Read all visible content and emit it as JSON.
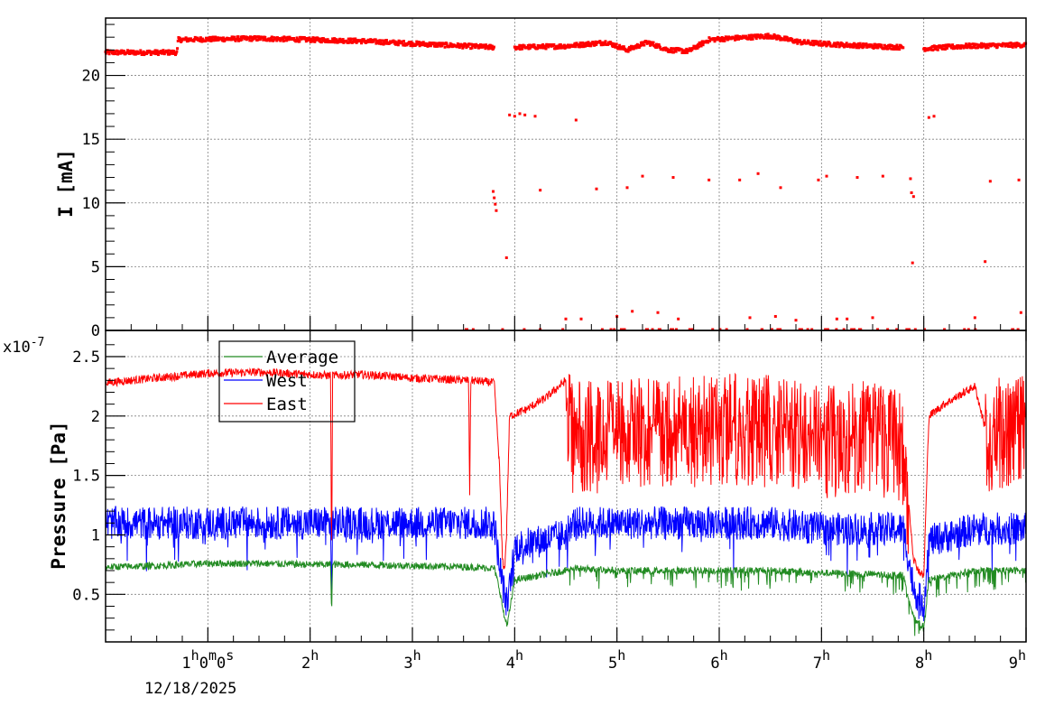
{
  "colors": {
    "east": "#ff0000",
    "west": "#0000ff",
    "average": "#228b22",
    "grid": "#808080",
    "frame": "#000000"
  },
  "chart_data": [
    {
      "type": "scatter",
      "ylabel": "I [mA]",
      "ylim": [
        0,
        24.5
      ],
      "y_ticks": [
        "0",
        "5",
        "10",
        "15",
        "20"
      ],
      "y_tick_values": [
        0,
        5,
        10,
        15,
        20
      ],
      "x_range_hours": [
        0,
        9
      ],
      "grid": true,
      "series": [
        {
          "color": "#ff0000",
          "main_trace": {
            "x": [
              0,
              0.7,
              0.71,
              1.5,
              2.5,
              3.0,
              3.8
            ],
            "y": [
              21.8,
              21.8,
              22.8,
              22.9,
              22.7,
              22.5,
              22.2
            ]
          },
          "main_trace_2": {
            "x": [
              4.0,
              4.5,
              4.9,
              5.1,
              5.3,
              5.5,
              5.7,
              5.9,
              6.1,
              6.5,
              6.8,
              7.2,
              7.8
            ],
            "y": [
              22.2,
              22.3,
              22.6,
              22.0,
              22.6,
              22.0,
              21.9,
              22.8,
              22.9,
              23.1,
              22.6,
              22.4,
              22.2
            ]
          },
          "main_trace_3": {
            "x": [
              8.0,
              8.4,
              9.0
            ],
            "y": [
              22.1,
              22.3,
              22.4
            ]
          },
          "scatter_points": {
            "x": [
              3.79,
              3.8,
              3.81,
              3.82,
              3.92,
              3.95,
              4.0,
              4.05,
              4.1,
              4.2,
              4.25,
              4.6,
              4.8,
              5.1,
              5.25,
              5.55,
              5.9,
              6.2,
              6.38,
              6.6,
              6.97,
              7.05,
              7.35,
              7.6,
              7.87,
              7.88,
              7.9,
              7.89,
              8.05,
              8.1,
              8.6,
              8.65,
              8.93,
              4.5,
              4.65,
              5.0,
              5.15,
              5.4,
              5.6,
              6.3,
              6.55,
              6.75,
              7.15,
              7.25,
              7.5,
              8.5,
              8.95
            ],
            "y": [
              10.9,
              10.4,
              9.9,
              9.4,
              5.7,
              16.9,
              16.8,
              17.0,
              16.9,
              16.8,
              11.0,
              16.5,
              11.1,
              11.2,
              12.1,
              12.0,
              11.8,
              11.8,
              12.3,
              11.2,
              11.8,
              12.1,
              12.0,
              12.1,
              11.9,
              10.8,
              10.5,
              5.3,
              16.7,
              16.8,
              5.4,
              11.7,
              11.8,
              0.9,
              0.9,
              1.1,
              1.5,
              1.4,
              0.9,
              1.0,
              1.1,
              0.8,
              0.9,
              0.9,
              1.0,
              1.0,
              1.4
            ]
          }
        }
      ]
    },
    {
      "type": "line",
      "ylabel": "Pressure [Pa]",
      "y_multiplier": "x10",
      "y_multiplier_exp": "-7",
      "ylim": [
        0.1,
        2.72
      ],
      "y_ticks": [
        "0.5",
        "1",
        "1.5",
        "2",
        "2.5"
      ],
      "y_tick_values": [
        0.5,
        1.0,
        1.5,
        2.0,
        2.5
      ],
      "x_range_hours": [
        0,
        9
      ],
      "x_tick_labels": [
        {
          "main": "1",
          "sup": "h"
        },
        {
          "main": "2",
          "sup": "h"
        },
        {
          "main": "3",
          "sup": "h"
        },
        {
          "main": "4",
          "sup": "h"
        },
        {
          "main": "5",
          "sup": "h"
        },
        {
          "main": "6",
          "sup": "h"
        },
        {
          "main": "7",
          "sup": "h"
        },
        {
          "main": "8",
          "sup": "h"
        },
        {
          "main": "9",
          "sup": "h"
        }
      ],
      "first_tick_full": [
        "1",
        "h",
        "0",
        "m",
        "0",
        "s"
      ],
      "x_date": "12/18/2025",
      "grid": true,
      "legend": {
        "position": "top-left",
        "entries": [
          "Average",
          "West",
          "East"
        ]
      },
      "series": [
        {
          "name": "East",
          "color": "#ff0000",
          "x": [
            0,
            0.5,
            1.0,
            1.5,
            2.0,
            2.2,
            2.21,
            2.22,
            2.5,
            3.0,
            3.55,
            3.56,
            3.57,
            3.8,
            3.85,
            3.88,
            3.9,
            3.92,
            3.95,
            4.1,
            4.3,
            4.5,
            4.55,
            5.0,
            5.5,
            6.0,
            6.5,
            7.0,
            7.5,
            7.8,
            7.9,
            7.95,
            8.0,
            8.05,
            8.2,
            8.5,
            8.6,
            9.0
          ],
          "y": [
            2.28,
            2.32,
            2.36,
            2.37,
            2.35,
            2.34,
            0.6,
            2.34,
            2.35,
            2.32,
            2.3,
            1.3,
            2.3,
            2.28,
            1.6,
            0.8,
            0.7,
            1.0,
            2.0,
            2.05,
            2.15,
            2.3,
            1.9,
            1.9,
            1.95,
            1.95,
            1.95,
            1.85,
            1.9,
            1.8,
            0.8,
            0.7,
            0.65,
            2.0,
            2.1,
            2.25,
            1.9,
            1.95
          ],
          "band": {
            "x": [
              4.5,
              7.85,
              8.6,
              9.0
            ],
            "min": [
              1.5,
              1.4,
              1.5,
              1.5
            ],
            "max": [
              2.5,
              2.55,
              2.45,
              2.45
            ]
          }
        },
        {
          "name": "West",
          "color": "#0000ff",
          "x": [
            0,
            0.5,
            1.0,
            1.5,
            2.0,
            2.2,
            2.21,
            2.22,
            2.5,
            3.0,
            3.55,
            3.6,
            3.8,
            3.85,
            3.9,
            3.93,
            4.0,
            4.5,
            4.55,
            5.0,
            5.5,
            6.0,
            6.5,
            7.0,
            7.5,
            7.8,
            7.9,
            8.0,
            8.05,
            8.5,
            9.0
          ],
          "y": [
            1.1,
            1.1,
            1.1,
            1.1,
            1.1,
            1.1,
            0.4,
            1.1,
            1.1,
            1.1,
            1.1,
            1.1,
            1.1,
            0.75,
            0.5,
            0.4,
            0.9,
            1.0,
            1.1,
            1.1,
            1.1,
            1.1,
            1.1,
            1.05,
            1.05,
            1.05,
            0.55,
            0.4,
            0.95,
            1.05,
            1.05
          ],
          "band_halfwidth": 0.14
        },
        {
          "name": "Average",
          "color": "#228b22",
          "x": [
            0,
            0.5,
            1.0,
            1.5,
            2.0,
            2.2,
            2.21,
            2.22,
            2.5,
            3.0,
            3.55,
            3.8,
            3.85,
            3.9,
            3.93,
            4.0,
            4.5,
            4.55,
            5.0,
            5.5,
            6.0,
            6.5,
            7.0,
            7.5,
            7.8,
            7.9,
            8.0,
            8.05,
            8.5,
            9.0
          ],
          "y": [
            0.73,
            0.74,
            0.76,
            0.76,
            0.75,
            0.75,
            0.35,
            0.75,
            0.75,
            0.74,
            0.73,
            0.72,
            0.55,
            0.3,
            0.25,
            0.62,
            0.7,
            0.72,
            0.7,
            0.7,
            0.7,
            0.7,
            0.68,
            0.67,
            0.66,
            0.3,
            0.22,
            0.62,
            0.7,
            0.7
          ],
          "band_halfwidth": 0.03
        }
      ]
    }
  ]
}
